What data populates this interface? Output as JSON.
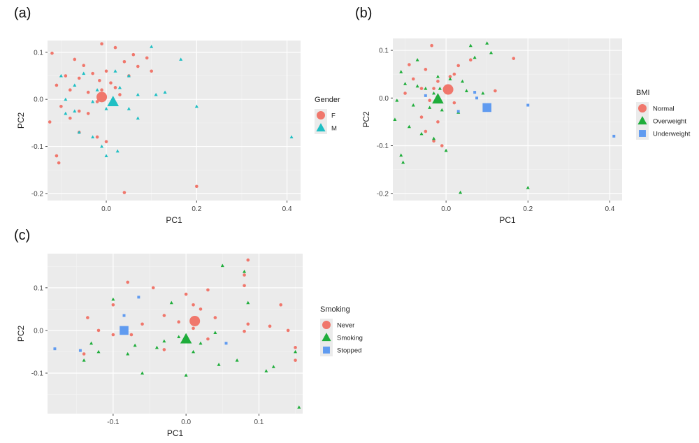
{
  "panels": [
    {
      "label": "(a)"
    },
    {
      "label": "(b)"
    },
    {
      "label": "(c)"
    }
  ],
  "colors": {
    "red": "#f0776c",
    "teal": "#1fbfc4",
    "green": "#1fad3b",
    "blue": "#609bf0",
    "panel_bg": "#ebebeb",
    "grid_major": "#ffffff"
  },
  "chart_data": [
    {
      "type": "scatter",
      "xlabel": "PC1",
      "ylabel": "PC2",
      "xlim": [
        -0.13,
        0.43
      ],
      "ylim": [
        -0.215,
        0.125
      ],
      "xticks": [
        0.0,
        0.2,
        0.4
      ],
      "xtick_labels": [
        "0.0",
        "0.2",
        "0.4"
      ],
      "yticks": [
        -0.2,
        -0.1,
        0.0,
        0.1
      ],
      "ytick_labels": [
        "-0.2",
        "-0.1",
        "0.0",
        "0.1"
      ],
      "legend": {
        "title": "Gender",
        "placement": "right"
      },
      "series": [
        {
          "name": "F",
          "color": "#f0776c",
          "shape": "circle",
          "points": [
            [
              -0.01,
              0.118
            ],
            [
              -0.12,
              0.098
            ],
            [
              -0.07,
              0.085
            ],
            [
              -0.05,
              0.072
            ],
            [
              0.04,
              0.08
            ],
            [
              0.07,
              0.07
            ],
            [
              0.1,
              0.06
            ],
            [
              -0.09,
              0.05
            ],
            [
              -0.06,
              0.045
            ],
            [
              -0.03,
              0.055
            ],
            [
              0.0,
              0.06
            ],
            [
              0.05,
              0.05
            ],
            [
              0.09,
              0.088
            ],
            [
              -0.11,
              0.03
            ],
            [
              -0.08,
              0.02
            ],
            [
              -0.04,
              0.015
            ],
            [
              -0.01,
              0.02
            ],
            [
              0.02,
              0.025
            ],
            [
              0.03,
              0.01
            ],
            [
              -0.1,
              -0.015
            ],
            [
              -0.06,
              -0.025
            ],
            [
              -0.02,
              -0.005
            ],
            [
              -0.08,
              -0.04
            ],
            [
              -0.04,
              -0.03
            ],
            [
              -0.125,
              -0.048
            ],
            [
              -0.06,
              -0.07
            ],
            [
              -0.02,
              -0.08
            ],
            [
              0.0,
              -0.09
            ],
            [
              -0.11,
              -0.12
            ],
            [
              -0.105,
              -0.135
            ],
            [
              0.04,
              -0.198
            ],
            [
              0.2,
              -0.185
            ],
            [
              0.02,
              0.11
            ],
            [
              0.06,
              0.095
            ],
            [
              -0.015,
              0.04
            ],
            [
              0.01,
              0.035
            ]
          ]
        },
        {
          "name": "M",
          "color": "#1fbfc4",
          "shape": "triangle",
          "points": [
            [
              0.1,
              0.112
            ],
            [
              0.165,
              0.085
            ],
            [
              -0.1,
              0.05
            ],
            [
              -0.05,
              0.055
            ],
            [
              0.02,
              0.06
            ],
            [
              0.05,
              0.05
            ],
            [
              -0.07,
              0.03
            ],
            [
              -0.02,
              0.02
            ],
            [
              0.03,
              0.025
            ],
            [
              -0.09,
              0.0
            ],
            [
              -0.03,
              -0.005
            ],
            [
              0.07,
              0.01
            ],
            [
              0.11,
              0.01
            ],
            [
              0.13,
              0.015
            ],
            [
              -0.07,
              -0.025
            ],
            [
              -0.09,
              -0.03
            ],
            [
              0.0,
              -0.02
            ],
            [
              0.05,
              -0.02
            ],
            [
              0.07,
              -0.04
            ],
            [
              0.2,
              -0.015
            ],
            [
              -0.06,
              -0.07
            ],
            [
              -0.03,
              -0.08
            ],
            [
              -0.01,
              -0.1
            ],
            [
              0.0,
              -0.12
            ],
            [
              0.025,
              -0.11
            ],
            [
              0.41,
              -0.08
            ]
          ]
        }
      ],
      "means": [
        {
          "series": "F",
          "x": -0.01,
          "y": 0.005
        },
        {
          "series": "M",
          "x": 0.015,
          "y": -0.005
        }
      ]
    },
    {
      "type": "scatter",
      "xlabel": "PC1",
      "ylabel": "PC2",
      "xlim": [
        -0.13,
        0.43
      ],
      "ylim": [
        -0.215,
        0.125
      ],
      "xticks": [
        0.0,
        0.2,
        0.4
      ],
      "xtick_labels": [
        "0.0",
        "0.2",
        "0.4"
      ],
      "yticks": [
        -0.2,
        -0.1,
        0.0,
        0.1
      ],
      "ytick_labels": [
        "-0.2",
        "-0.1",
        "0.0",
        "0.1"
      ],
      "legend": {
        "title": "BMI",
        "placement": "right"
      },
      "series": [
        {
          "name": "Normal",
          "color": "#f0776c",
          "shape": "circle",
          "points": [
            [
              -0.035,
              0.11
            ],
            [
              0.165,
              0.083
            ],
            [
              -0.09,
              0.07
            ],
            [
              -0.05,
              0.06
            ],
            [
              0.03,
              0.068
            ],
            [
              0.06,
              0.08
            ],
            [
              -0.08,
              0.04
            ],
            [
              -0.02,
              0.035
            ],
            [
              0.01,
              0.045
            ],
            [
              -0.06,
              0.02
            ],
            [
              -0.03,
              0.02
            ],
            [
              0.12,
              0.015
            ],
            [
              -0.1,
              0.01
            ],
            [
              -0.04,
              -0.005
            ],
            [
              0.02,
              -0.01
            ],
            [
              -0.06,
              -0.04
            ],
            [
              -0.02,
              -0.05
            ],
            [
              -0.05,
              -0.07
            ],
            [
              -0.03,
              -0.09
            ],
            [
              -0.01,
              -0.1
            ],
            [
              0.02,
              0.05
            ]
          ]
        },
        {
          "name": "Overweight",
          "color": "#1fad3b",
          "shape": "triangle",
          "points": [
            [
              0.1,
              0.115
            ],
            [
              0.06,
              0.11
            ],
            [
              0.11,
              0.095
            ],
            [
              0.07,
              0.085
            ],
            [
              -0.07,
              0.08
            ],
            [
              -0.11,
              0.055
            ],
            [
              -0.02,
              0.045
            ],
            [
              0.01,
              0.04
            ],
            [
              0.04,
              0.035
            ],
            [
              -0.1,
              0.03
            ],
            [
              -0.07,
              0.025
            ],
            [
              -0.05,
              0.02
            ],
            [
              -0.03,
              0.01
            ],
            [
              0.05,
              0.015
            ],
            [
              0.09,
              0.01
            ],
            [
              -0.12,
              -0.005
            ],
            [
              -0.08,
              -0.015
            ],
            [
              -0.04,
              -0.02
            ],
            [
              -0.01,
              -0.025
            ],
            [
              0.03,
              -0.03
            ],
            [
              -0.125,
              -0.045
            ],
            [
              -0.09,
              -0.06
            ],
            [
              -0.06,
              -0.075
            ],
            [
              -0.03,
              -0.085
            ],
            [
              0.0,
              -0.11
            ],
            [
              -0.11,
              -0.12
            ],
            [
              -0.105,
              -0.135
            ],
            [
              0.035,
              -0.198
            ],
            [
              0.2,
              -0.188
            ],
            [
              -0.015,
              0.02
            ]
          ]
        },
        {
          "name": "Underweight",
          "color": "#609bf0",
          "shape": "square",
          "points": [
            [
              0.07,
              0.012
            ],
            [
              0.075,
              0.0
            ],
            [
              0.03,
              -0.028
            ],
            [
              -0.05,
              0.005
            ],
            [
              0.2,
              -0.015
            ],
            [
              0.41,
              -0.08
            ]
          ]
        }
      ],
      "means": [
        {
          "series": "Normal",
          "x": 0.005,
          "y": 0.018
        },
        {
          "series": "Overweight",
          "x": -0.02,
          "y": -0.002
        },
        {
          "series": "Underweight",
          "x": 0.1,
          "y": -0.02
        }
      ]
    },
    {
      "type": "scatter",
      "xlabel": "PC1",
      "ylabel": "PC2",
      "xlim": [
        -0.19,
        0.16
      ],
      "ylim": [
        -0.195,
        0.18
      ],
      "xticks": [
        -0.1,
        0.0,
        0.1
      ],
      "xtick_labels": [
        "-0.1",
        "0.0",
        "0.1"
      ],
      "yticks": [
        -0.1,
        0.0,
        0.1
      ],
      "ytick_labels": [
        "-0.1",
        "0.0",
        "0.1"
      ],
      "legend": {
        "title": "Smoking",
        "placement": "right"
      },
      "series": [
        {
          "name": "Never",
          "color": "#f0776c",
          "shape": "circle",
          "points": [
            [
              0.085,
              0.165
            ],
            [
              0.08,
              0.13
            ],
            [
              -0.08,
              0.113
            ],
            [
              -0.045,
              0.1
            ],
            [
              0.0,
              0.085
            ],
            [
              0.03,
              0.095
            ],
            [
              0.08,
              0.105
            ],
            [
              -0.1,
              0.06
            ],
            [
              0.01,
              0.06
            ],
            [
              0.02,
              0.05
            ],
            [
              0.04,
              0.03
            ],
            [
              -0.135,
              0.03
            ],
            [
              -0.03,
              0.035
            ],
            [
              -0.01,
              0.02
            ],
            [
              0.13,
              0.06
            ],
            [
              -0.06,
              0.015
            ],
            [
              0.01,
              0.005
            ],
            [
              0.085,
              0.015
            ],
            [
              0.115,
              0.01
            ],
            [
              0.14,
              0.0
            ],
            [
              -0.12,
              0.0
            ],
            [
              -0.075,
              -0.01
            ],
            [
              0.08,
              -0.002
            ],
            [
              -0.1,
              -0.01
            ],
            [
              0.03,
              -0.02
            ],
            [
              0.15,
              -0.04
            ],
            [
              -0.14,
              -0.055
            ],
            [
              0.15,
              -0.07
            ],
            [
              -0.03,
              -0.045
            ]
          ]
        },
        {
          "name": "Smoking",
          "color": "#1fad3b",
          "shape": "triangle",
          "points": [
            [
              0.05,
              0.152
            ],
            [
              0.08,
              0.138
            ],
            [
              -0.1,
              0.073
            ],
            [
              -0.02,
              0.065
            ],
            [
              0.085,
              0.065
            ],
            [
              -0.13,
              -0.03
            ],
            [
              -0.12,
              -0.05
            ],
            [
              -0.07,
              -0.035
            ],
            [
              -0.03,
              -0.025
            ],
            [
              -0.01,
              -0.015
            ],
            [
              0.02,
              -0.03
            ],
            [
              -0.14,
              -0.07
            ],
            [
              -0.08,
              -0.055
            ],
            [
              0.01,
              -0.05
            ],
            [
              0.07,
              -0.07
            ],
            [
              0.12,
              -0.085
            ],
            [
              0.11,
              -0.095
            ],
            [
              0.045,
              -0.08
            ],
            [
              -0.06,
              -0.1
            ],
            [
              0.0,
              -0.105
            ],
            [
              0.15,
              -0.05
            ],
            [
              0.155,
              -0.18
            ],
            [
              0.04,
              -0.005
            ],
            [
              -0.04,
              -0.04
            ]
          ]
        },
        {
          "name": "Stopped",
          "color": "#609bf0",
          "shape": "square",
          "points": [
            [
              -0.065,
              0.078
            ],
            [
              -0.085,
              0.035
            ],
            [
              -0.18,
              -0.043
            ],
            [
              -0.145,
              -0.047
            ],
            [
              0.055,
              -0.03
            ]
          ]
        }
      ],
      "means": [
        {
          "series": "Never",
          "x": 0.012,
          "y": 0.022
        },
        {
          "series": "Smoking",
          "x": 0.0,
          "y": -0.02
        },
        {
          "series": "Stopped",
          "x": -0.085,
          "y": 0.0
        }
      ]
    }
  ]
}
